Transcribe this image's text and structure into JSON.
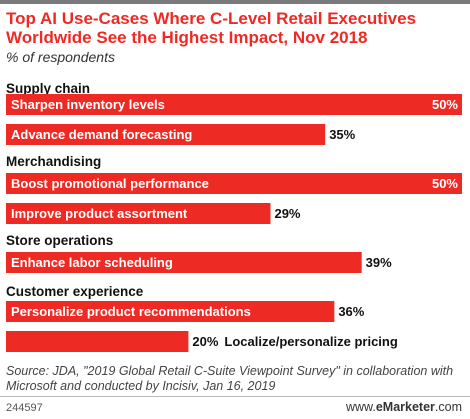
{
  "chart_data": {
    "type": "bar",
    "orientation": "horizontal",
    "title": "Top AI Use-Cases Where C-Level Retail Executives Worldwide See the Highest Impact, Nov 2018",
    "subtitle": "% of respondents",
    "value_suffix": "%",
    "xlim": [
      0,
      50
    ],
    "grid": false,
    "bar_color": "#ee2a24",
    "groups": [
      {
        "name": "Supply chain",
        "items": [
          {
            "label": "Sharpen inventory levels",
            "value": 50
          },
          {
            "label": "Advance demand forecasting",
            "value": 35
          }
        ]
      },
      {
        "name": "Merchandising",
        "items": [
          {
            "label": "Boost promotional performance",
            "value": 50
          },
          {
            "label": "Improve product assortment",
            "value": 29
          }
        ]
      },
      {
        "name": "Store operations",
        "items": [
          {
            "label": "Enhance labor scheduling",
            "value": 39
          }
        ]
      },
      {
        "name": "Customer experience",
        "items": [
          {
            "label": "Personalize product recommendations",
            "value": 36
          },
          {
            "label": "Localize/personalize pricing",
            "value": 20
          }
        ]
      }
    ]
  },
  "source": "Source: JDA, \"2019 Global Retail C-Suite Viewpoint Survey\" in collaboration with Microsoft and conducted by Incisiv, Jan 16, 2019",
  "chart_id": "244597",
  "brand": {
    "prefix": "www.",
    "name": "eMarketer",
    "suffix": ".com"
  }
}
